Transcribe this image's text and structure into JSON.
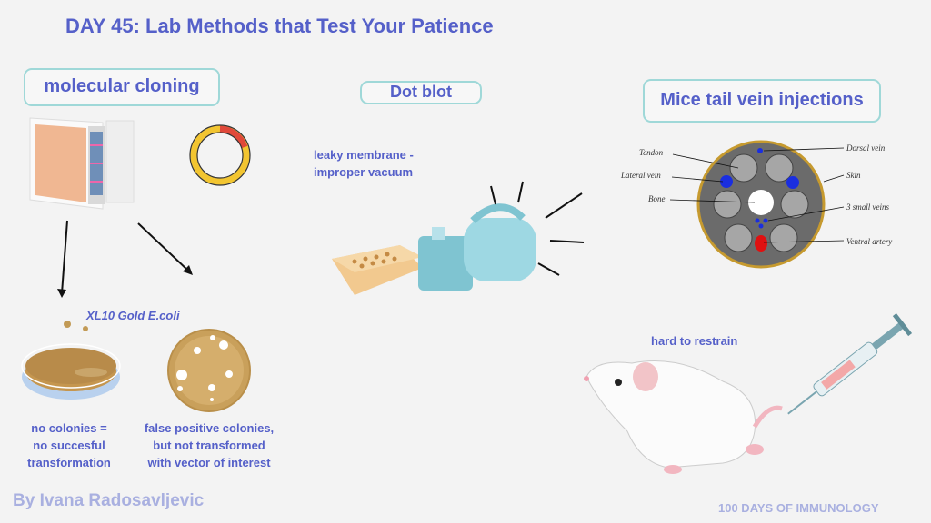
{
  "title": "DAY 45: Lab Methods that Test Your Patience",
  "sections": {
    "cloning": {
      "label": "molecular cloning",
      "strain": "XL10 Gold E.coli",
      "outcome_1": [
        "no colonies =",
        "no succesful",
        "transformation"
      ],
      "outcome_2": [
        "false positive colonies,",
        "but not transformed",
        "with vector of interest"
      ]
    },
    "dot_blot": {
      "label": "Dot blot",
      "issue": [
        "leaky membrane -",
        "improper vacuum"
      ]
    },
    "injections": {
      "label": "Mice tail vein injections",
      "diagram_labels": {
        "tendon": "Tendon",
        "lateral_vein": "Lateral vein",
        "bone": "Bone",
        "dorsal_vein": "Dorsal vein",
        "skin": "Skin",
        "small_veins": "3 small veins",
        "ventral_artery": "Ventral artery"
      },
      "issue": "hard to restrain"
    }
  },
  "footer": {
    "author": "By Ivana Radosavljevic",
    "series": "100 DAYS OF IMMUNOLOGY"
  },
  "colors": {
    "text": "#5560c9",
    "box_border": "#9fd8d8",
    "footer": "#a9b0e0"
  }
}
